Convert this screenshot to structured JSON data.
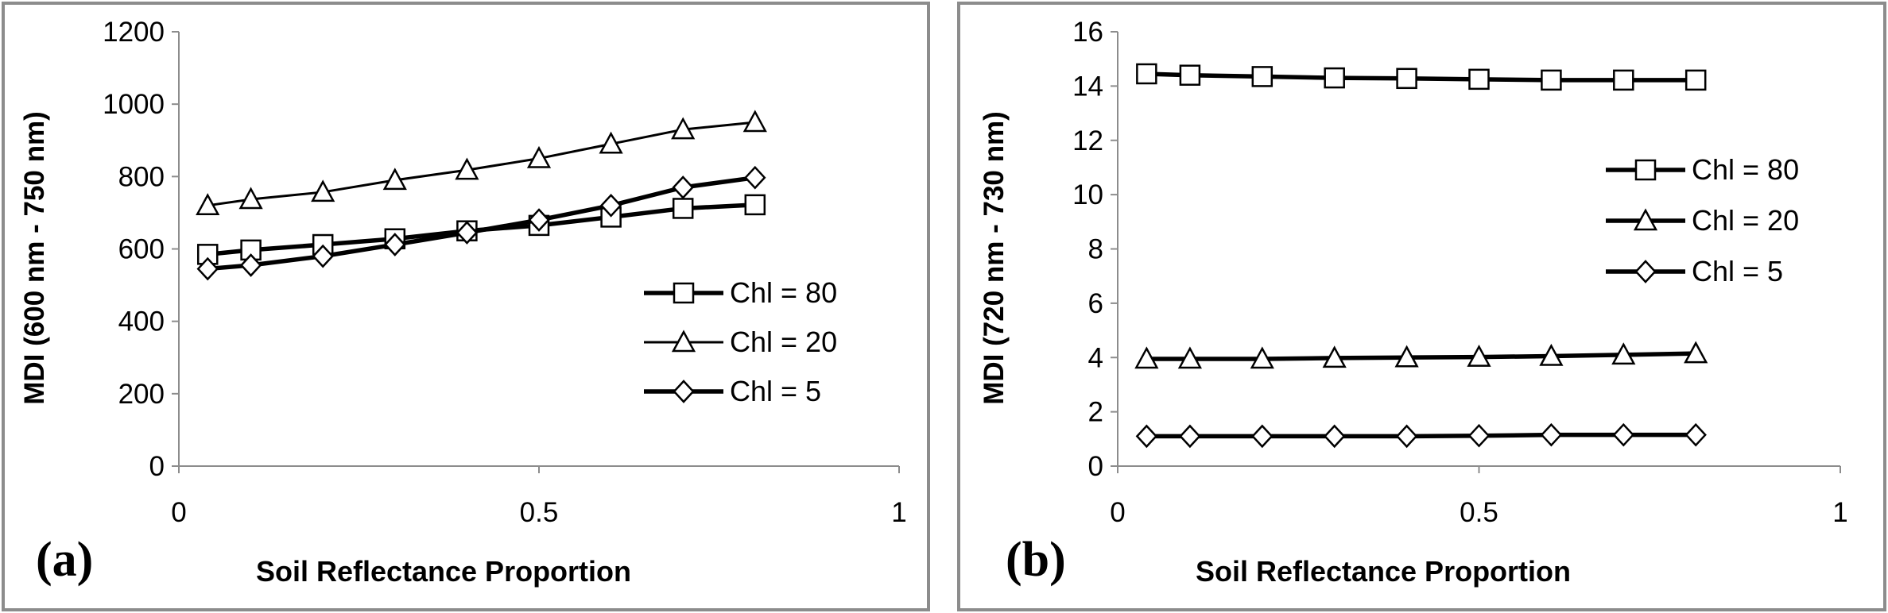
{
  "chart_data": [
    {
      "type": "line",
      "panel_label": "(a)",
      "xlabel": "Soil Reflectance Proportion",
      "ylabel": "MDI (600 nm - 750 nm)",
      "xlim": [
        0,
        1
      ],
      "ylim": [
        0,
        1200
      ],
      "xticks": [
        0,
        0.5,
        1
      ],
      "xtick_labels": [
        "0",
        "0.5",
        "1"
      ],
      "yticks": [
        0,
        200,
        400,
        600,
        800,
        1000,
        1200
      ],
      "ytick_labels": [
        "0",
        "200",
        "400",
        "600",
        "800",
        "1000",
        "1200"
      ],
      "grid": false,
      "legend_position": "right",
      "x": [
        0.04,
        0.1,
        0.2,
        0.3,
        0.4,
        0.5,
        0.6,
        0.7,
        0.8
      ],
      "series": [
        {
          "name": "Chl = 80",
          "marker": "square",
          "line": "thick",
          "values": [
            585,
            597,
            612,
            628,
            650,
            665,
            688,
            712,
            722
          ]
        },
        {
          "name": "Chl = 20",
          "marker": "triangle",
          "line": "thin",
          "values": [
            720,
            737,
            757,
            790,
            818,
            850,
            890,
            930,
            950
          ]
        },
        {
          "name": "Chl = 5",
          "marker": "diamond",
          "line": "thick",
          "values": [
            545,
            555,
            580,
            612,
            645,
            680,
            720,
            770,
            797
          ]
        }
      ]
    },
    {
      "type": "line",
      "panel_label": "(b)",
      "xlabel": "Soil Reflectance Proportion",
      "ylabel": "MDI (720 nm - 730 nm)",
      "xlim": [
        0,
        1
      ],
      "ylim": [
        0,
        16
      ],
      "xticks": [
        0,
        0.5,
        1
      ],
      "xtick_labels": [
        "0",
        "0.5",
        "1"
      ],
      "yticks": [
        0,
        2,
        4,
        6,
        8,
        10,
        12,
        14,
        16
      ],
      "ytick_labels": [
        "0",
        "2",
        "4",
        "6",
        "8",
        "10",
        "12",
        "14",
        "16"
      ],
      "grid": false,
      "legend_position": "right",
      "x": [
        0.04,
        0.1,
        0.2,
        0.3,
        0.4,
        0.5,
        0.6,
        0.7,
        0.8
      ],
      "series": [
        {
          "name": "Chl = 80",
          "marker": "square",
          "line": "thick",
          "values": [
            14.45,
            14.4,
            14.35,
            14.3,
            14.28,
            14.25,
            14.22,
            14.22,
            14.22
          ]
        },
        {
          "name": "Chl = 20",
          "marker": "triangle",
          "line": "thick",
          "values": [
            3.95,
            3.95,
            3.95,
            3.98,
            4.0,
            4.02,
            4.05,
            4.1,
            4.15
          ]
        },
        {
          "name": "Chl = 5",
          "marker": "diamond",
          "line": "thick",
          "values": [
            1.1,
            1.1,
            1.1,
            1.1,
            1.1,
            1.12,
            1.15,
            1.15,
            1.15
          ]
        }
      ]
    }
  ]
}
